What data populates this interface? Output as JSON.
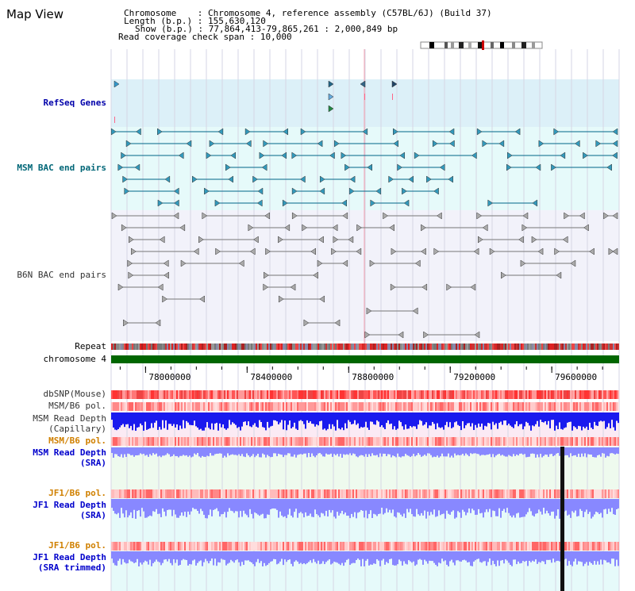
{
  "page": {
    "title": "Map View"
  },
  "info": {
    "chromosome_label": "Chromosome",
    "chromosome_value": "Chromosome 4, reference assembly (C57BL/6J) (Build 37)",
    "length_label": "Length (b.p.)",
    "length_value": "155,630,120",
    "show_label": "Show (b.p.)",
    "show_value": "77,864,413-79,865,261 : 2,000,849 bp",
    "span_label": "Read coverage check span",
    "span_value": "10,000"
  },
  "tracks": {
    "refseq": "RefSeq Genes",
    "msm_bac": "MSM BAC end pairs",
    "b6n_bac": "B6N BAC end pairs",
    "repeat": "Repeat",
    "chromosome": "chromosome 4",
    "dbsnp": "dbSNP(Mouse)",
    "msm_b6_pol_1": "MSM/B6 pol.",
    "msm_depth_cap_1": "MSM Read Depth",
    "msm_depth_cap_2": "(Capillary)",
    "msm_b6_pol_2": "MSM/B6 pol.",
    "msm_depth_sra_1": "MSM Read Depth",
    "msm_depth_sra_2": "(SRA)",
    "jf1_b6_pol_1": "JF1/B6 pol.",
    "jf1_depth_sra_1": "JF1 Read Depth",
    "jf1_depth_sra_2": "(SRA)",
    "jf1_b6_pol_2": "JF1/B6 pol.",
    "jf1_depth_trim_1": "JF1 Read Depth",
    "jf1_depth_trim_2": "(SRA trimmed)"
  },
  "colors": {
    "refseq_bg": "#dcf0f8",
    "msm_bac_bg": "#e6fafa",
    "b6n_bac_bg": "#f2f2fa",
    "depth_cap_bg": "#fbeaf4",
    "depth_sra_bg": "#eefaee",
    "depth_jf1_bg": "#e6fafa",
    "chromosome": "#006600",
    "depth_blue": "#1a1aee",
    "depth_light": "#8888ff",
    "teal": "#006688",
    "gray": "#777777"
  },
  "chart_data": {
    "type": "genome-browser",
    "x_range": [
      77864413,
      79865261
    ],
    "x_ticks": [
      78000000,
      78400000,
      78800000,
      79200000,
      79600000
    ],
    "x_tick_labels": [
      "78000000",
      "78400000",
      "78800000",
      "79200000",
      "79600000"
    ]
  }
}
